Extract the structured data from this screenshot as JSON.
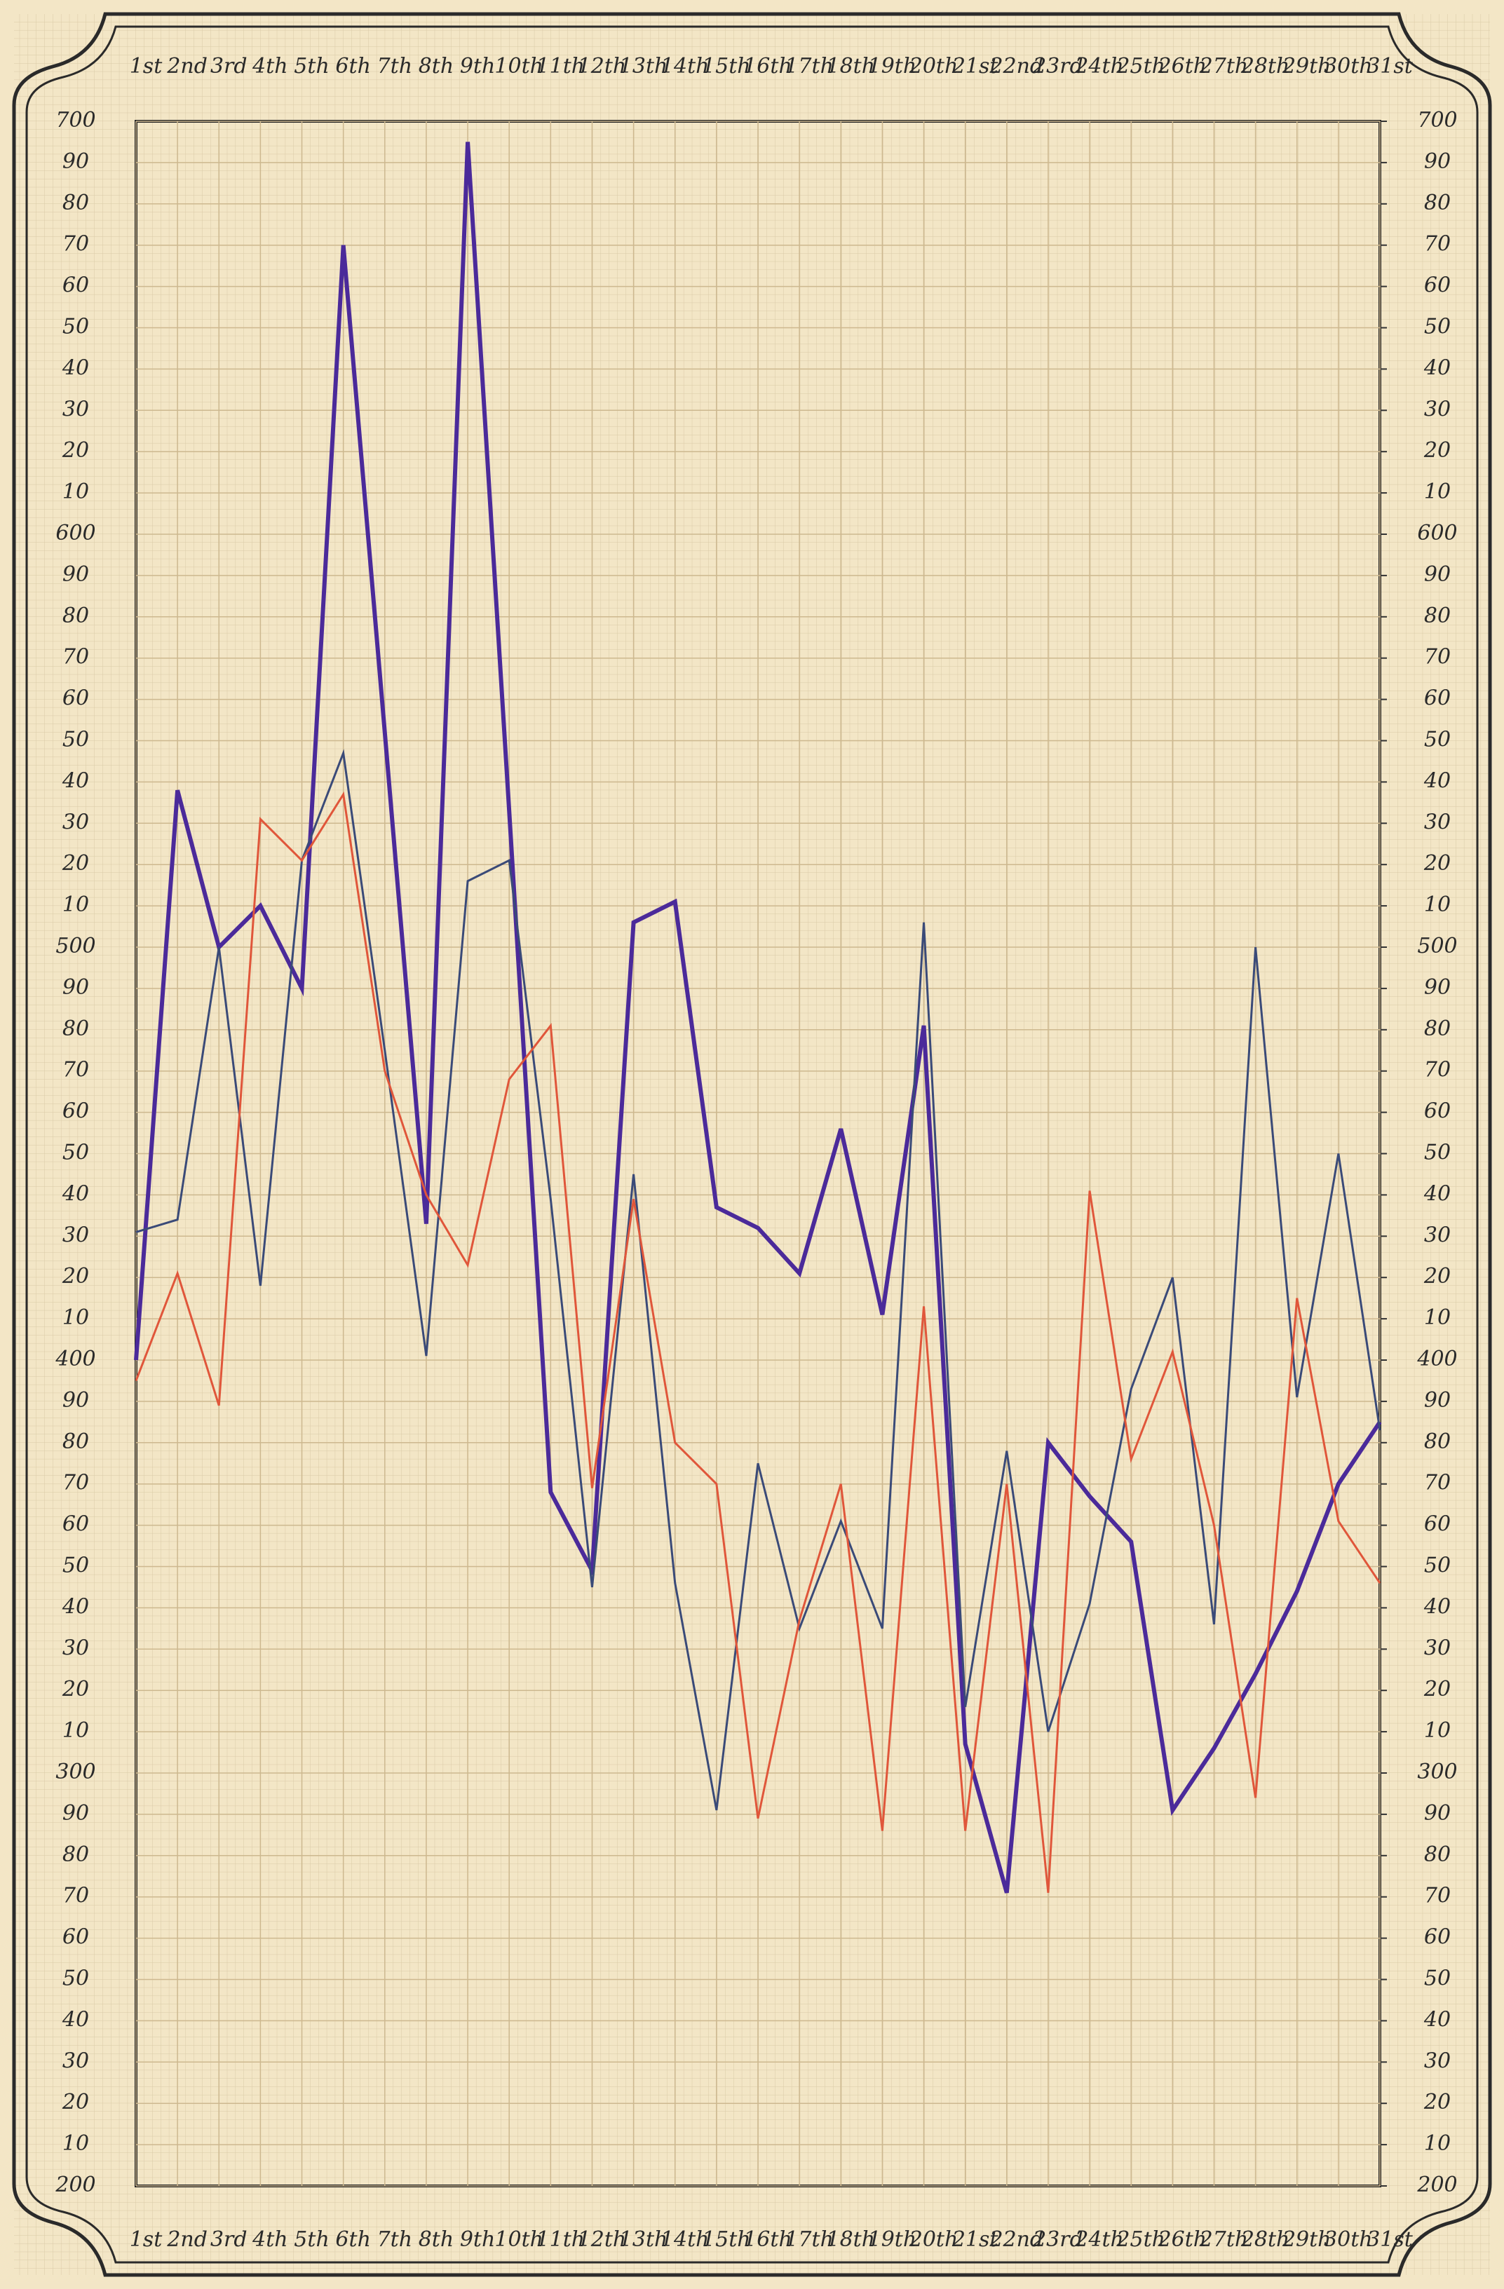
{
  "chart_data": {
    "type": "line",
    "categories": [
      "1st",
      "2nd",
      "3rd",
      "4th",
      "5th",
      "6th",
      "7th",
      "8th",
      "9th",
      "10th",
      "11th",
      "12th",
      "13th",
      "14th",
      "15th",
      "16th",
      "17th",
      "18th",
      "19th",
      "20th",
      "21st",
      "22nd",
      "23rd",
      "24th",
      "25th",
      "26th",
      "27th",
      "28th",
      "29th",
      "30th",
      "31st"
    ],
    "series": [
      {
        "color": "#4b2a9a",
        "values": [
          400,
          538,
          500,
          510,
          490,
          670,
          552,
          433,
          695,
          533,
          368,
          349,
          506,
          511,
          437,
          432,
          421,
          456,
          411,
          481,
          307,
          271,
          380,
          367,
          356,
          291,
          306,
          324,
          344,
          370,
          385
        ]
      },
      {
        "color": "#3a4a78",
        "values": [
          431,
          434,
          500,
          418,
          521,
          547,
          475,
          401,
          516,
          521,
          439,
          345,
          445,
          346,
          291,
          375,
          335,
          361,
          335,
          506,
          316,
          378,
          310,
          341,
          393,
          420,
          336,
          500,
          391,
          450,
          383
        ]
      },
      {
        "color": "#e0563a",
        "values": [
          395,
          421,
          389,
          531,
          521,
          537,
          470,
          440,
          423,
          468,
          481,
          369,
          439,
          380,
          370,
          289,
          337,
          370,
          286,
          413,
          286,
          370,
          271,
          441,
          376,
          402,
          360,
          294,
          415,
          361,
          346
        ]
      }
    ],
    "ylim": [
      200,
      700
    ],
    "yticks": [
      700,
      {
        "value": 690,
        "label": "90"
      },
      {
        "value": 680,
        "label": "80"
      },
      {
        "value": 670,
        "label": "70"
      },
      {
        "value": 660,
        "label": "60"
      },
      {
        "value": 650,
        "label": "50"
      },
      {
        "value": 640,
        "label": "40"
      },
      {
        "value": 630,
        "label": "30"
      },
      {
        "value": 620,
        "label": "20"
      },
      {
        "value": 610,
        "label": "10"
      },
      600,
      {
        "value": 590,
        "label": "90"
      },
      {
        "value": 580,
        "label": "80"
      },
      {
        "value": 570,
        "label": "70"
      },
      {
        "value": 560,
        "label": "60"
      },
      {
        "value": 550,
        "label": "50"
      },
      {
        "value": 540,
        "label": "40"
      },
      {
        "value": 530,
        "label": "30"
      },
      {
        "value": 520,
        "label": "20"
      },
      {
        "value": 510,
        "label": "10"
      },
      500,
      {
        "value": 490,
        "label": "90"
      },
      {
        "value": 480,
        "label": "80"
      },
      {
        "value": 470,
        "label": "70"
      },
      {
        "value": 460,
        "label": "60"
      },
      {
        "value": 450,
        "label": "50"
      },
      {
        "value": 440,
        "label": "40"
      },
      {
        "value": 430,
        "label": "30"
      },
      {
        "value": 420,
        "label": "20"
      },
      {
        "value": 410,
        "label": "10"
      },
      400,
      {
        "value": 390,
        "label": "90"
      },
      {
        "value": 380,
        "label": "80"
      },
      {
        "value": 370,
        "label": "70"
      },
      {
        "value": 360,
        "label": "60"
      },
      {
        "value": 350,
        "label": "50"
      },
      {
        "value": 340,
        "label": "40"
      },
      {
        "value": 330,
        "label": "30"
      },
      {
        "value": 320,
        "label": "20"
      },
      {
        "value": 310,
        "label": "10"
      },
      300,
      {
        "value": 290,
        "label": "90"
      },
      {
        "value": 280,
        "label": "80"
      },
      {
        "value": 270,
        "label": "70"
      },
      {
        "value": 260,
        "label": "60"
      },
      {
        "value": 250,
        "label": "50"
      },
      {
        "value": 240,
        "label": "40"
      },
      {
        "value": 230,
        "label": "30"
      },
      {
        "value": 220,
        "label": "20"
      },
      {
        "value": 210,
        "label": "10"
      },
      200
    ],
    "y2lim": [
      200,
      700
    ],
    "y2ticks": [
      700,
      {
        "value": 690,
        "label": "90"
      },
      {
        "value": 680,
        "label": "80"
      },
      {
        "value": 670,
        "label": "70"
      },
      {
        "value": 660,
        "label": "60"
      },
      {
        "value": 650,
        "label": "50"
      },
      {
        "value": 640,
        "label": "40"
      },
      {
        "value": 630,
        "label": "30"
      },
      {
        "value": 620,
        "label": "20"
      },
      {
        "value": 610,
        "label": "10"
      },
      600,
      {
        "value": 590,
        "label": "90"
      },
      {
        "value": 580,
        "label": "80"
      },
      {
        "value": 570,
        "label": "70"
      },
      {
        "value": 560,
        "label": "60"
      },
      {
        "value": 550,
        "label": "50"
      },
      {
        "value": 540,
        "label": "40"
      },
      {
        "value": 530,
        "label": "30"
      },
      {
        "value": 520,
        "label": "20"
      },
      {
        "value": 510,
        "label": "10"
      },
      500,
      {
        "value": 490,
        "label": "90"
      },
      {
        "value": 480,
        "label": "80"
      },
      {
        "value": 470,
        "label": "70"
      },
      {
        "value": 460,
        "label": "60"
      },
      {
        "value": 450,
        "label": "50"
      },
      {
        "value": 440,
        "label": "40"
      },
      {
        "value": 430,
        "label": "30"
      },
      {
        "value": 420,
        "label": "20"
      },
      {
        "value": 410,
        "label": "10"
      },
      400,
      {
        "value": 390,
        "label": "90"
      },
      {
        "value": 380,
        "label": "80"
      },
      {
        "value": 370,
        "label": "70"
      },
      {
        "value": 360,
        "label": "60"
      },
      {
        "value": 350,
        "label": "50"
      },
      {
        "value": 340,
        "label": "40"
      },
      {
        "value": 330,
        "label": "30"
      },
      {
        "value": 320,
        "label": "20"
      },
      {
        "value": 310,
        "label": "10"
      },
      300,
      {
        "value": 290,
        "label": "90"
      },
      {
        "value": 280,
        "label": "80"
      },
      {
        "value": 270,
        "label": "70"
      },
      {
        "value": 260,
        "label": "60"
      },
      {
        "value": 250,
        "label": "50"
      },
      {
        "value": 240,
        "label": "40"
      },
      {
        "value": 230,
        "label": "30"
      },
      {
        "value": 220,
        "label": "20"
      },
      {
        "value": 210,
        "label": "10"
      },
      200
    ],
    "grid": true
  }
}
